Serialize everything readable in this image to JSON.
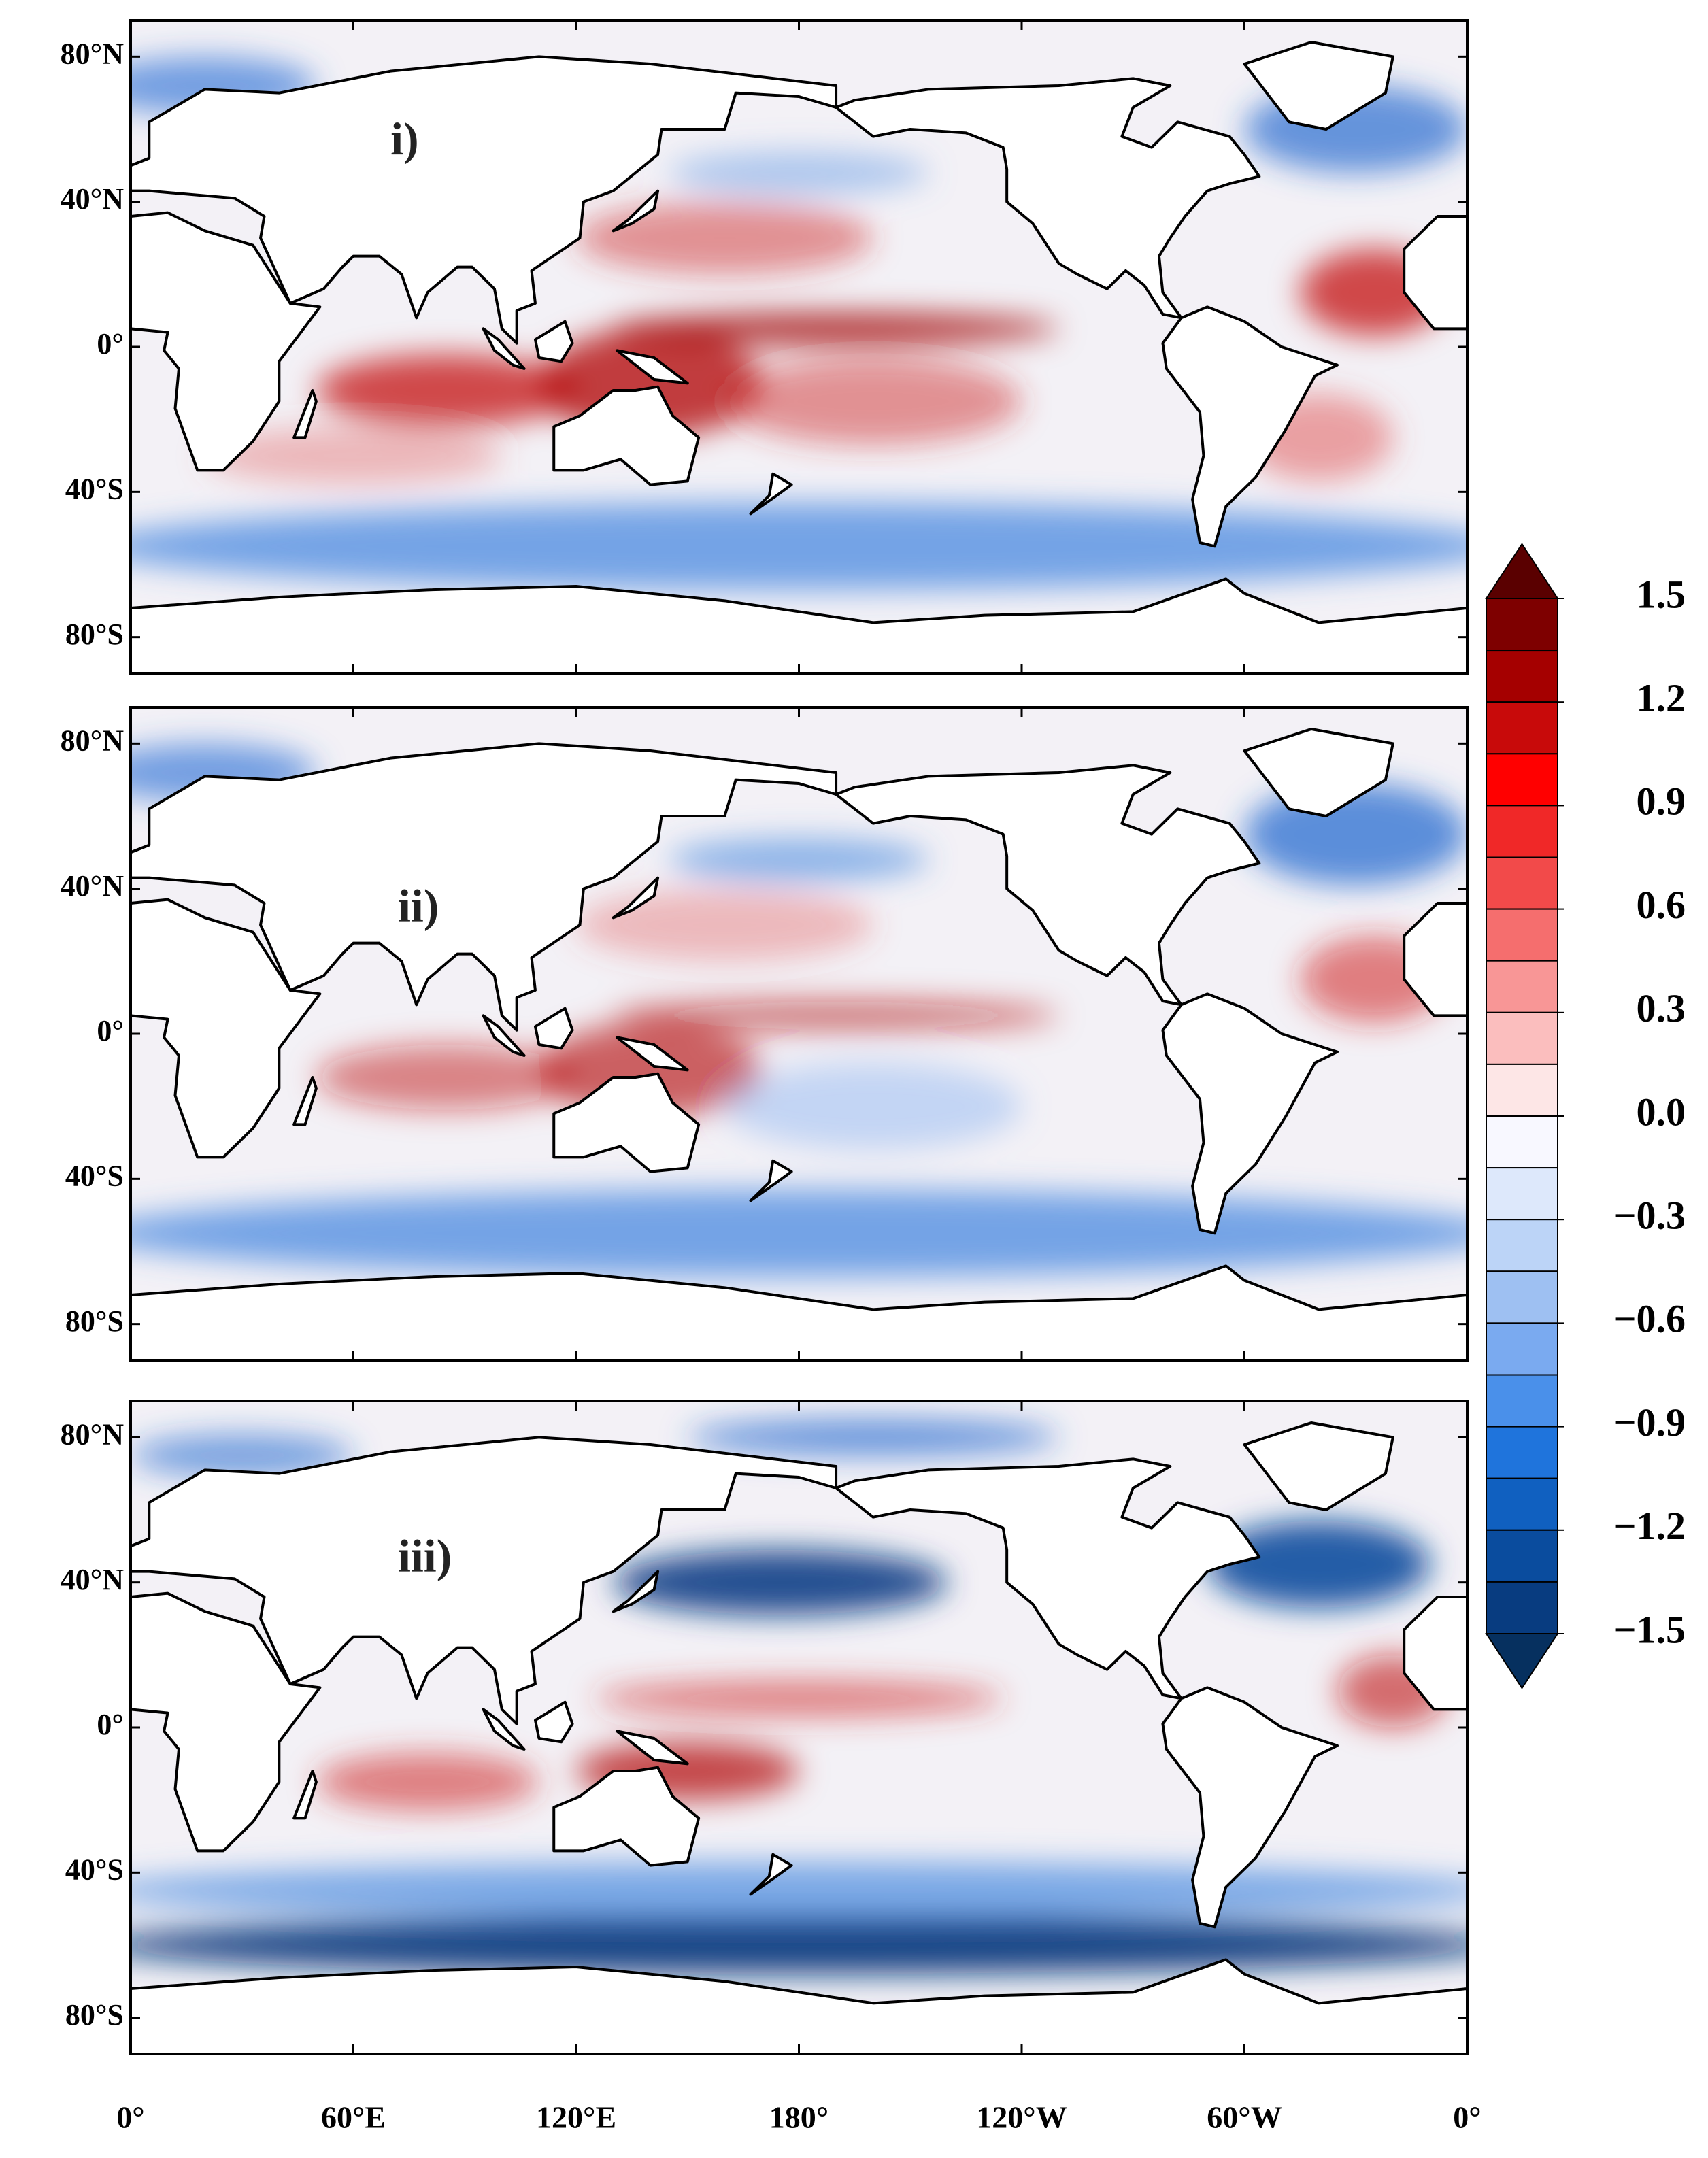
{
  "panels": [
    {
      "label": "i)"
    },
    {
      "label": "ii)"
    },
    {
      "label": "iii)"
    }
  ],
  "lat_labels": [
    "80°N",
    "40°N",
    "0°",
    "40°S",
    "80°S"
  ],
  "lon_labels": [
    "0°",
    "60°E",
    "120°E",
    "180°",
    "120°W",
    "60°W",
    "0°"
  ],
  "colorbar": {
    "range": [
      -1.5,
      1.5
    ],
    "ticks": [
      1.5,
      1.2,
      0.9,
      0.6,
      0.3,
      {
        "value": 0,
        "label": "0.0"
      },
      {
        "value": -0.3,
        "label": "−0.3"
      },
      {
        "value": -0.6,
        "label": "−0.6"
      },
      {
        "value": -0.9,
        "label": "−0.9"
      },
      {
        "value": -1.2,
        "label": "−1.2"
      },
      {
        "value": -1.5,
        "label": "−1.5"
      }
    ],
    "colors": [
      "#7e0000",
      "#a50000",
      "#c80a0a",
      "#ff0000",
      "#f02828",
      "#f24a4a",
      "#f56e6e",
      "#f89696",
      "#fbbebe",
      "#fde6e6",
      "#f8f8ff",
      "#dde8fb",
      "#bcd4f7",
      "#9ec0f2",
      "#7aaaf0",
      "#4a90ea",
      "#1f74dc",
      "#1060c0",
      "#0a4c9e",
      "#083c80"
    ],
    "over_color": "#5a0000",
    "under_color": "#06305f"
  }
}
